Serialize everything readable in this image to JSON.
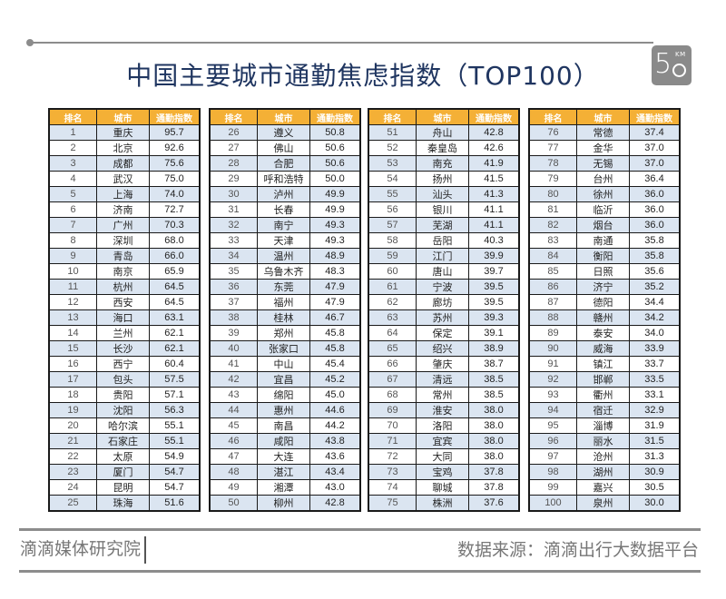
{
  "title": "中国主要城市通勤焦虑指数（TOP100）",
  "logo": {
    "number": "5",
    "unit": "KM"
  },
  "table_headers": {
    "rank": "排名",
    "city": "城市",
    "index": "通勤指数"
  },
  "colors": {
    "header_bg": "#f4b036",
    "title": "#1f3560",
    "stripe": "#dbe5f1",
    "rule": "#8c8c8c"
  },
  "tables": [
    {
      "rows": [
        {
          "rank": "1",
          "city": "重庆",
          "index": "95.7"
        },
        {
          "rank": "2",
          "city": "北京",
          "index": "92.6"
        },
        {
          "rank": "3",
          "city": "成都",
          "index": "75.6"
        },
        {
          "rank": "4",
          "city": "武汉",
          "index": "75.0"
        },
        {
          "rank": "5",
          "city": "上海",
          "index": "74.0"
        },
        {
          "rank": "6",
          "city": "济南",
          "index": "72.7"
        },
        {
          "rank": "7",
          "city": "广州",
          "index": "70.3"
        },
        {
          "rank": "8",
          "city": "深圳",
          "index": "68.0"
        },
        {
          "rank": "9",
          "city": "青岛",
          "index": "66.0"
        },
        {
          "rank": "10",
          "city": "南京",
          "index": "65.9"
        },
        {
          "rank": "11",
          "city": "杭州",
          "index": "64.5"
        },
        {
          "rank": "12",
          "city": "西安",
          "index": "64.5"
        },
        {
          "rank": "13",
          "city": "海口",
          "index": "63.1"
        },
        {
          "rank": "14",
          "city": "兰州",
          "index": "62.1"
        },
        {
          "rank": "15",
          "city": "长沙",
          "index": "62.1"
        },
        {
          "rank": "16",
          "city": "西宁",
          "index": "60.4"
        },
        {
          "rank": "17",
          "city": "包头",
          "index": "57.5"
        },
        {
          "rank": "18",
          "city": "贵阳",
          "index": "57.1"
        },
        {
          "rank": "19",
          "city": "沈阳",
          "index": "56.3"
        },
        {
          "rank": "20",
          "city": "哈尔滨",
          "index": "55.1"
        },
        {
          "rank": "21",
          "city": "石家庄",
          "index": "55.1"
        },
        {
          "rank": "22",
          "city": "太原",
          "index": "54.9"
        },
        {
          "rank": "23",
          "city": "厦门",
          "index": "54.7"
        },
        {
          "rank": "24",
          "city": "昆明",
          "index": "54.7"
        },
        {
          "rank": "25",
          "city": "珠海",
          "index": "51.6"
        }
      ]
    },
    {
      "rows": [
        {
          "rank": "26",
          "city": "遵义",
          "index": "50.8"
        },
        {
          "rank": "27",
          "city": "佛山",
          "index": "50.6"
        },
        {
          "rank": "28",
          "city": "合肥",
          "index": "50.6"
        },
        {
          "rank": "29",
          "city": "呼和浩特",
          "index": "50.0"
        },
        {
          "rank": "30",
          "city": "泸州",
          "index": "49.9"
        },
        {
          "rank": "31",
          "city": "长春",
          "index": "49.9"
        },
        {
          "rank": "32",
          "city": "南宁",
          "index": "49.3"
        },
        {
          "rank": "33",
          "city": "天津",
          "index": "49.3"
        },
        {
          "rank": "34",
          "city": "温州",
          "index": "48.9"
        },
        {
          "rank": "35",
          "city": "乌鲁木齐",
          "index": "48.3"
        },
        {
          "rank": "36",
          "city": "东莞",
          "index": "47.9"
        },
        {
          "rank": "37",
          "city": "福州",
          "index": "47.9"
        },
        {
          "rank": "38",
          "city": "桂林",
          "index": "46.7"
        },
        {
          "rank": "39",
          "city": "郑州",
          "index": "45.8"
        },
        {
          "rank": "40",
          "city": "张家口",
          "index": "45.8"
        },
        {
          "rank": "41",
          "city": "中山",
          "index": "45.4"
        },
        {
          "rank": "42",
          "city": "宜昌",
          "index": "45.2"
        },
        {
          "rank": "43",
          "city": "绵阳",
          "index": "45.0"
        },
        {
          "rank": "44",
          "city": "惠州",
          "index": "44.6"
        },
        {
          "rank": "45",
          "city": "南昌",
          "index": "44.2"
        },
        {
          "rank": "46",
          "city": "咸阳",
          "index": "43.8"
        },
        {
          "rank": "47",
          "city": "大连",
          "index": "43.6"
        },
        {
          "rank": "48",
          "city": "湛江",
          "index": "43.4"
        },
        {
          "rank": "49",
          "city": "湘潭",
          "index": "43.0"
        },
        {
          "rank": "50",
          "city": "柳州",
          "index": "42.8"
        }
      ]
    },
    {
      "rows": [
        {
          "rank": "51",
          "city": "舟山",
          "index": "42.8"
        },
        {
          "rank": "52",
          "city": "秦皇岛",
          "index": "42.6"
        },
        {
          "rank": "53",
          "city": "南充",
          "index": "41.9"
        },
        {
          "rank": "54",
          "city": "扬州",
          "index": "41.5"
        },
        {
          "rank": "55",
          "city": "汕头",
          "index": "41.3"
        },
        {
          "rank": "56",
          "city": "银川",
          "index": "41.1"
        },
        {
          "rank": "57",
          "city": "芜湖",
          "index": "41.1"
        },
        {
          "rank": "58",
          "city": "岳阳",
          "index": "40.3"
        },
        {
          "rank": "59",
          "city": "江门",
          "index": "39.9"
        },
        {
          "rank": "60",
          "city": "唐山",
          "index": "39.7"
        },
        {
          "rank": "61",
          "city": "宁波",
          "index": "39.5"
        },
        {
          "rank": "62",
          "city": "廊坊",
          "index": "39.5"
        },
        {
          "rank": "63",
          "city": "苏州",
          "index": "39.3"
        },
        {
          "rank": "64",
          "city": "保定",
          "index": "39.1"
        },
        {
          "rank": "65",
          "city": "绍兴",
          "index": "38.9"
        },
        {
          "rank": "66",
          "city": "肇庆",
          "index": "38.7"
        },
        {
          "rank": "67",
          "city": "清远",
          "index": "38.5"
        },
        {
          "rank": "68",
          "city": "常州",
          "index": "38.5"
        },
        {
          "rank": "69",
          "city": "淮安",
          "index": "38.0"
        },
        {
          "rank": "70",
          "city": "洛阳",
          "index": "38.0"
        },
        {
          "rank": "71",
          "city": "宜宾",
          "index": "38.0"
        },
        {
          "rank": "72",
          "city": "大同",
          "index": "38.0"
        },
        {
          "rank": "73",
          "city": "宝鸡",
          "index": "37.8"
        },
        {
          "rank": "74",
          "city": "聊城",
          "index": "37.8"
        },
        {
          "rank": "75",
          "city": "株洲",
          "index": "37.6"
        }
      ]
    },
    {
      "rows": [
        {
          "rank": "76",
          "city": "常德",
          "index": "37.4"
        },
        {
          "rank": "77",
          "city": "金华",
          "index": "37.0"
        },
        {
          "rank": "78",
          "city": "无锡",
          "index": "37.0"
        },
        {
          "rank": "79",
          "city": "台州",
          "index": "36.4"
        },
        {
          "rank": "80",
          "city": "徐州",
          "index": "36.0"
        },
        {
          "rank": "81",
          "city": "临沂",
          "index": "36.0"
        },
        {
          "rank": "82",
          "city": "烟台",
          "index": "36.0"
        },
        {
          "rank": "83",
          "city": "南通",
          "index": "35.8"
        },
        {
          "rank": "84",
          "city": "衡阳",
          "index": "35.8"
        },
        {
          "rank": "85",
          "city": "日照",
          "index": "35.6"
        },
        {
          "rank": "86",
          "city": "济宁",
          "index": "35.2"
        },
        {
          "rank": "87",
          "city": "德阳",
          "index": "34.4"
        },
        {
          "rank": "88",
          "city": "赣州",
          "index": "34.2"
        },
        {
          "rank": "89",
          "city": "泰安",
          "index": "34.0"
        },
        {
          "rank": "90",
          "city": "威海",
          "index": "33.9"
        },
        {
          "rank": "91",
          "city": "镇江",
          "index": "33.7"
        },
        {
          "rank": "92",
          "city": "邯郸",
          "index": "33.5"
        },
        {
          "rank": "93",
          "city": "衢州",
          "index": "33.1"
        },
        {
          "rank": "94",
          "city": "宿迁",
          "index": "32.9"
        },
        {
          "rank": "95",
          "city": "淄博",
          "index": "31.9"
        },
        {
          "rank": "96",
          "city": "丽水",
          "index": "31.5"
        },
        {
          "rank": "97",
          "city": "沧州",
          "index": "31.3"
        },
        {
          "rank": "98",
          "city": "湖州",
          "index": "30.9"
        },
        {
          "rank": "99",
          "city": "嘉兴",
          "index": "30.5"
        },
        {
          "rank": "100",
          "city": "泉州",
          "index": "30.0"
        }
      ]
    }
  ],
  "footer": {
    "left": "滴滴媒体研究院",
    "right": "数据来源：滴滴出行大数据平台"
  }
}
